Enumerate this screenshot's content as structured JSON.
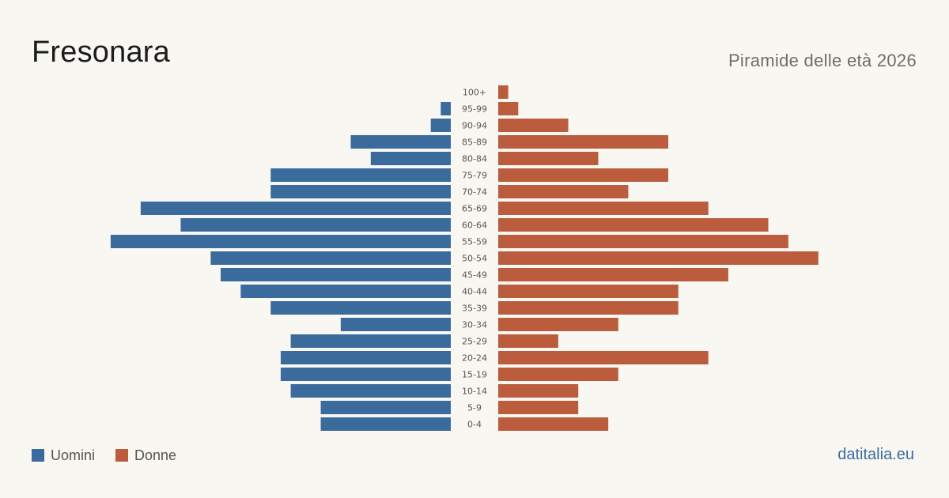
{
  "header": {
    "title": "Fresonara",
    "subtitle": "Piramide delle età 2026"
  },
  "legend": {
    "men_label": "Uomini",
    "women_label": "Donne"
  },
  "footer": {
    "source": "datitalia.eu"
  },
  "colors": {
    "men": "#3b6a9c",
    "women": "#bb5d3c",
    "background": "#f9f7f2"
  },
  "chart_data": {
    "type": "bar",
    "orientation": "horizontal-pyramid",
    "categories": [
      "100+",
      "95-99",
      "90-94",
      "85-89",
      "80-84",
      "75-79",
      "70-74",
      "65-69",
      "60-64",
      "55-59",
      "50-54",
      "45-49",
      "40-44",
      "35-39",
      "30-34",
      "25-29",
      "20-24",
      "15-19",
      "10-14",
      "5-9",
      "0-4"
    ],
    "series": [
      {
        "name": "Uomini",
        "values": [
          0,
          1,
          2,
          10,
          8,
          18,
          18,
          31,
          27,
          34,
          24,
          23,
          21,
          18,
          11,
          16,
          17,
          17,
          16,
          13,
          13
        ]
      },
      {
        "name": "Donne",
        "values": [
          1,
          2,
          7,
          17,
          10,
          17,
          13,
          21,
          27,
          29,
          32,
          23,
          18,
          18,
          12,
          6,
          21,
          12,
          8,
          8,
          11
        ]
      }
    ],
    "xlim": [
      0,
      34
    ],
    "grid": false,
    "legend_position": "bottom-left"
  }
}
